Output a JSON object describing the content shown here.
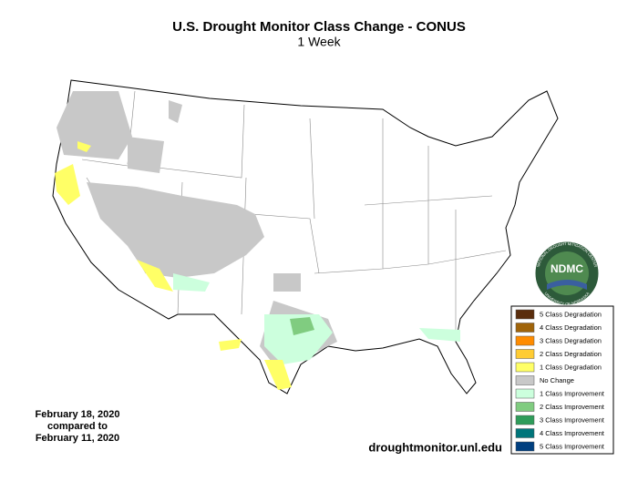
{
  "header": {
    "title": "U.S. Drought Monitor Class Change - CONUS",
    "subtitle": "1 Week"
  },
  "legend": {
    "items": [
      {
        "label": "5 Class Degradation",
        "color": "#5a2d0c"
      },
      {
        "label": "4 Class Degradation",
        "color": "#a0640a"
      },
      {
        "label": "3 Class Degradation",
        "color": "#ff8c00"
      },
      {
        "label": "2 Class Degradation",
        "color": "#ffcc33"
      },
      {
        "label": "1 Class Degradation",
        "color": "#ffff66"
      },
      {
        "label": "No Change",
        "color": "#c8c8c8"
      },
      {
        "label": "1 Class Improvement",
        "color": "#ccffdd"
      },
      {
        "label": "2 Class Improvement",
        "color": "#80cc80"
      },
      {
        "label": "3 Class Improvement",
        "color": "#2e9c5a"
      },
      {
        "label": "4 Class Improvement",
        "color": "#00757a"
      },
      {
        "label": "5 Class Improvement",
        "color": "#003f7f"
      }
    ]
  },
  "dates": {
    "line1": "February 18, 2020",
    "line2": "compared to",
    "line3": "February 11, 2020"
  },
  "source": "droughtmonitor.unl.edu",
  "logo": {
    "text": "NDMC",
    "ring_top": "NATIONAL DROUGHT MITIGATION CENTER",
    "ring_bottom": "UNIVERSITY OF NEBRASKA"
  }
}
